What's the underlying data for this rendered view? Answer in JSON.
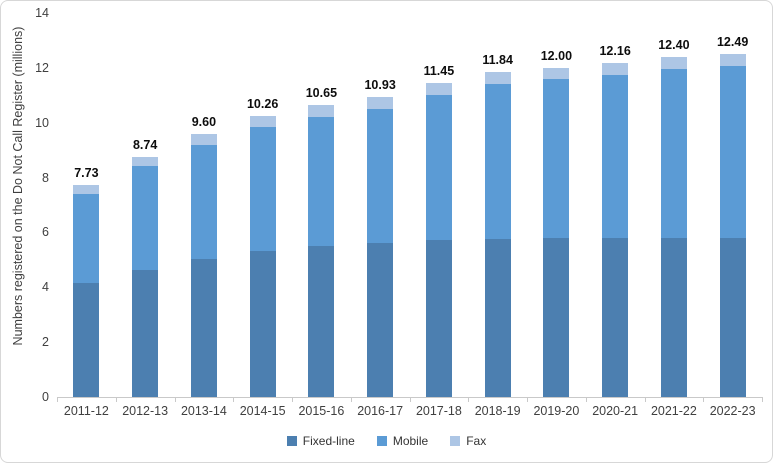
{
  "chart_data": {
    "type": "bar",
    "stacked": true,
    "title": "",
    "xlabel": "",
    "ylabel": "Numbers registered on the Do Not Call Register (millions)",
    "ylim": [
      0,
      14
    ],
    "yticks": [
      0,
      2,
      4,
      6,
      8,
      10,
      12,
      14
    ],
    "ytick_labels": [
      "0",
      "2",
      "4",
      "6",
      "8",
      "10",
      "12",
      "14"
    ],
    "grid": false,
    "legend_position": "bottom",
    "categories": [
      "2011-12",
      "2012-13",
      "2013-14",
      "2014-15",
      "2015-16",
      "2016-17",
      "2017-18",
      "2018-19",
      "2019-20",
      "2020-21",
      "2021-22",
      "2022-23"
    ],
    "series": [
      {
        "name": "Fixed-line",
        "color": "#4c7fb0",
        "values": [
          4.15,
          4.63,
          5.03,
          5.34,
          5.5,
          5.63,
          5.72,
          5.76,
          5.78,
          5.81,
          5.78,
          5.81
        ]
      },
      {
        "name": "Mobile",
        "color": "#5b9bd5",
        "values": [
          3.25,
          3.78,
          4.17,
          4.49,
          4.7,
          4.88,
          5.3,
          5.65,
          5.8,
          5.93,
          6.18,
          6.26
        ]
      },
      {
        "name": "Fax",
        "color": "#adc6e5",
        "values": [
          0.33,
          0.33,
          0.4,
          0.43,
          0.45,
          0.42,
          0.43,
          0.43,
          0.42,
          0.42,
          0.44,
          0.42
        ]
      }
    ],
    "total_labels": [
      "7.73",
      "8.74",
      "9.60",
      "10.26",
      "10.65",
      "10.93",
      "11.45",
      "11.84",
      "12.00",
      "12.16",
      "12.40",
      "12.49"
    ]
  }
}
